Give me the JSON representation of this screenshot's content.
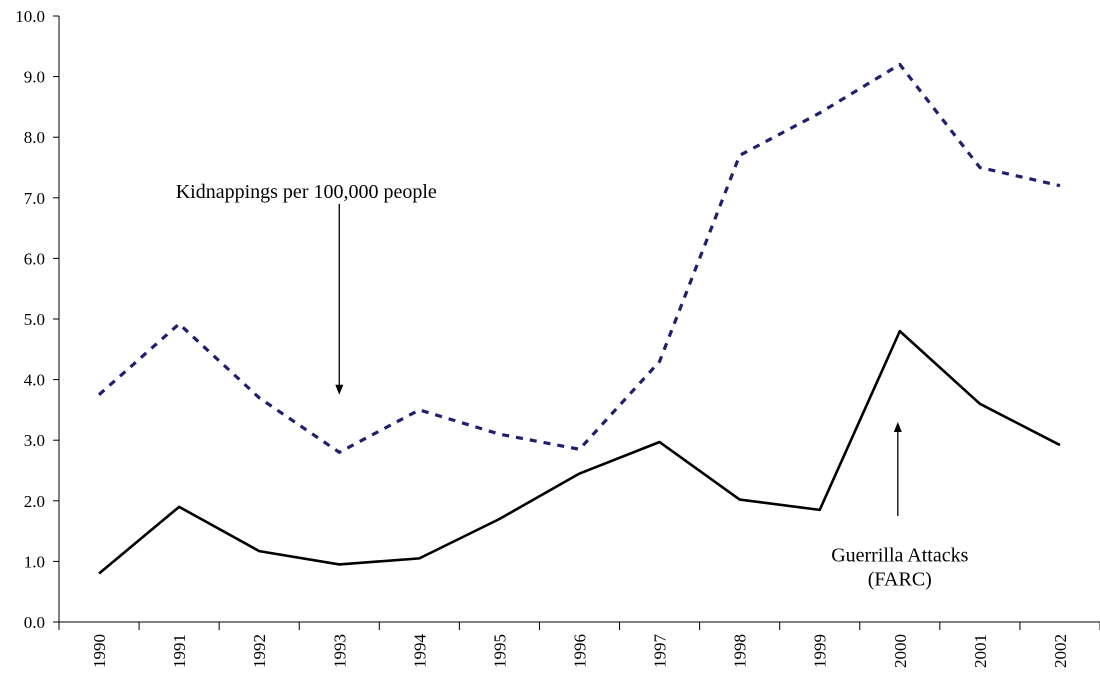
{
  "chart_data": {
    "type": "line",
    "title": "",
    "xlabel": "",
    "ylabel": "",
    "categories": [
      "1990",
      "1991",
      "1992",
      "1993",
      "1994",
      "1995",
      "1996",
      "1997",
      "1998",
      "1999",
      "2000",
      "2001",
      "2002"
    ],
    "ylim": [
      0,
      10
    ],
    "yticks": [
      "0.0",
      "1.0",
      "2.0",
      "3.0",
      "4.0",
      "5.0",
      "6.0",
      "7.0",
      "8.0",
      "9.0",
      "10.0"
    ],
    "grid": false,
    "legend": "none",
    "series": [
      {
        "name": "Kidnappings per 100,000 people",
        "style": "dashed",
        "color": "#1f1f6e",
        "values": [
          3.75,
          4.92,
          3.7,
          2.8,
          3.5,
          3.1,
          2.85,
          4.3,
          7.7,
          8.4,
          9.2,
          7.5,
          7.2
        ]
      },
      {
        "name": "Guerrilla Attacks (FARC)",
        "style": "solid",
        "color": "#000000",
        "values": [
          0.8,
          1.9,
          1.17,
          0.95,
          1.05,
          1.7,
          2.45,
          2.97,
          2.02,
          1.85,
          4.8,
          3.6,
          2.92
        ]
      }
    ],
    "annotations": [
      {
        "id": "kidnap",
        "lines": [
          "Kidnappings per 100,000 people"
        ],
        "category": "1993",
        "text_y": 7.0,
        "arrow_from_y": 6.9,
        "arrow_to_y": 3.75
      },
      {
        "id": "farc",
        "lines": [
          "Guerrilla Attacks",
          "(FARC)"
        ],
        "category": "2000",
        "text_y": 1.0,
        "arrow_from_y": 1.75,
        "arrow_to_y": 3.3
      }
    ]
  }
}
